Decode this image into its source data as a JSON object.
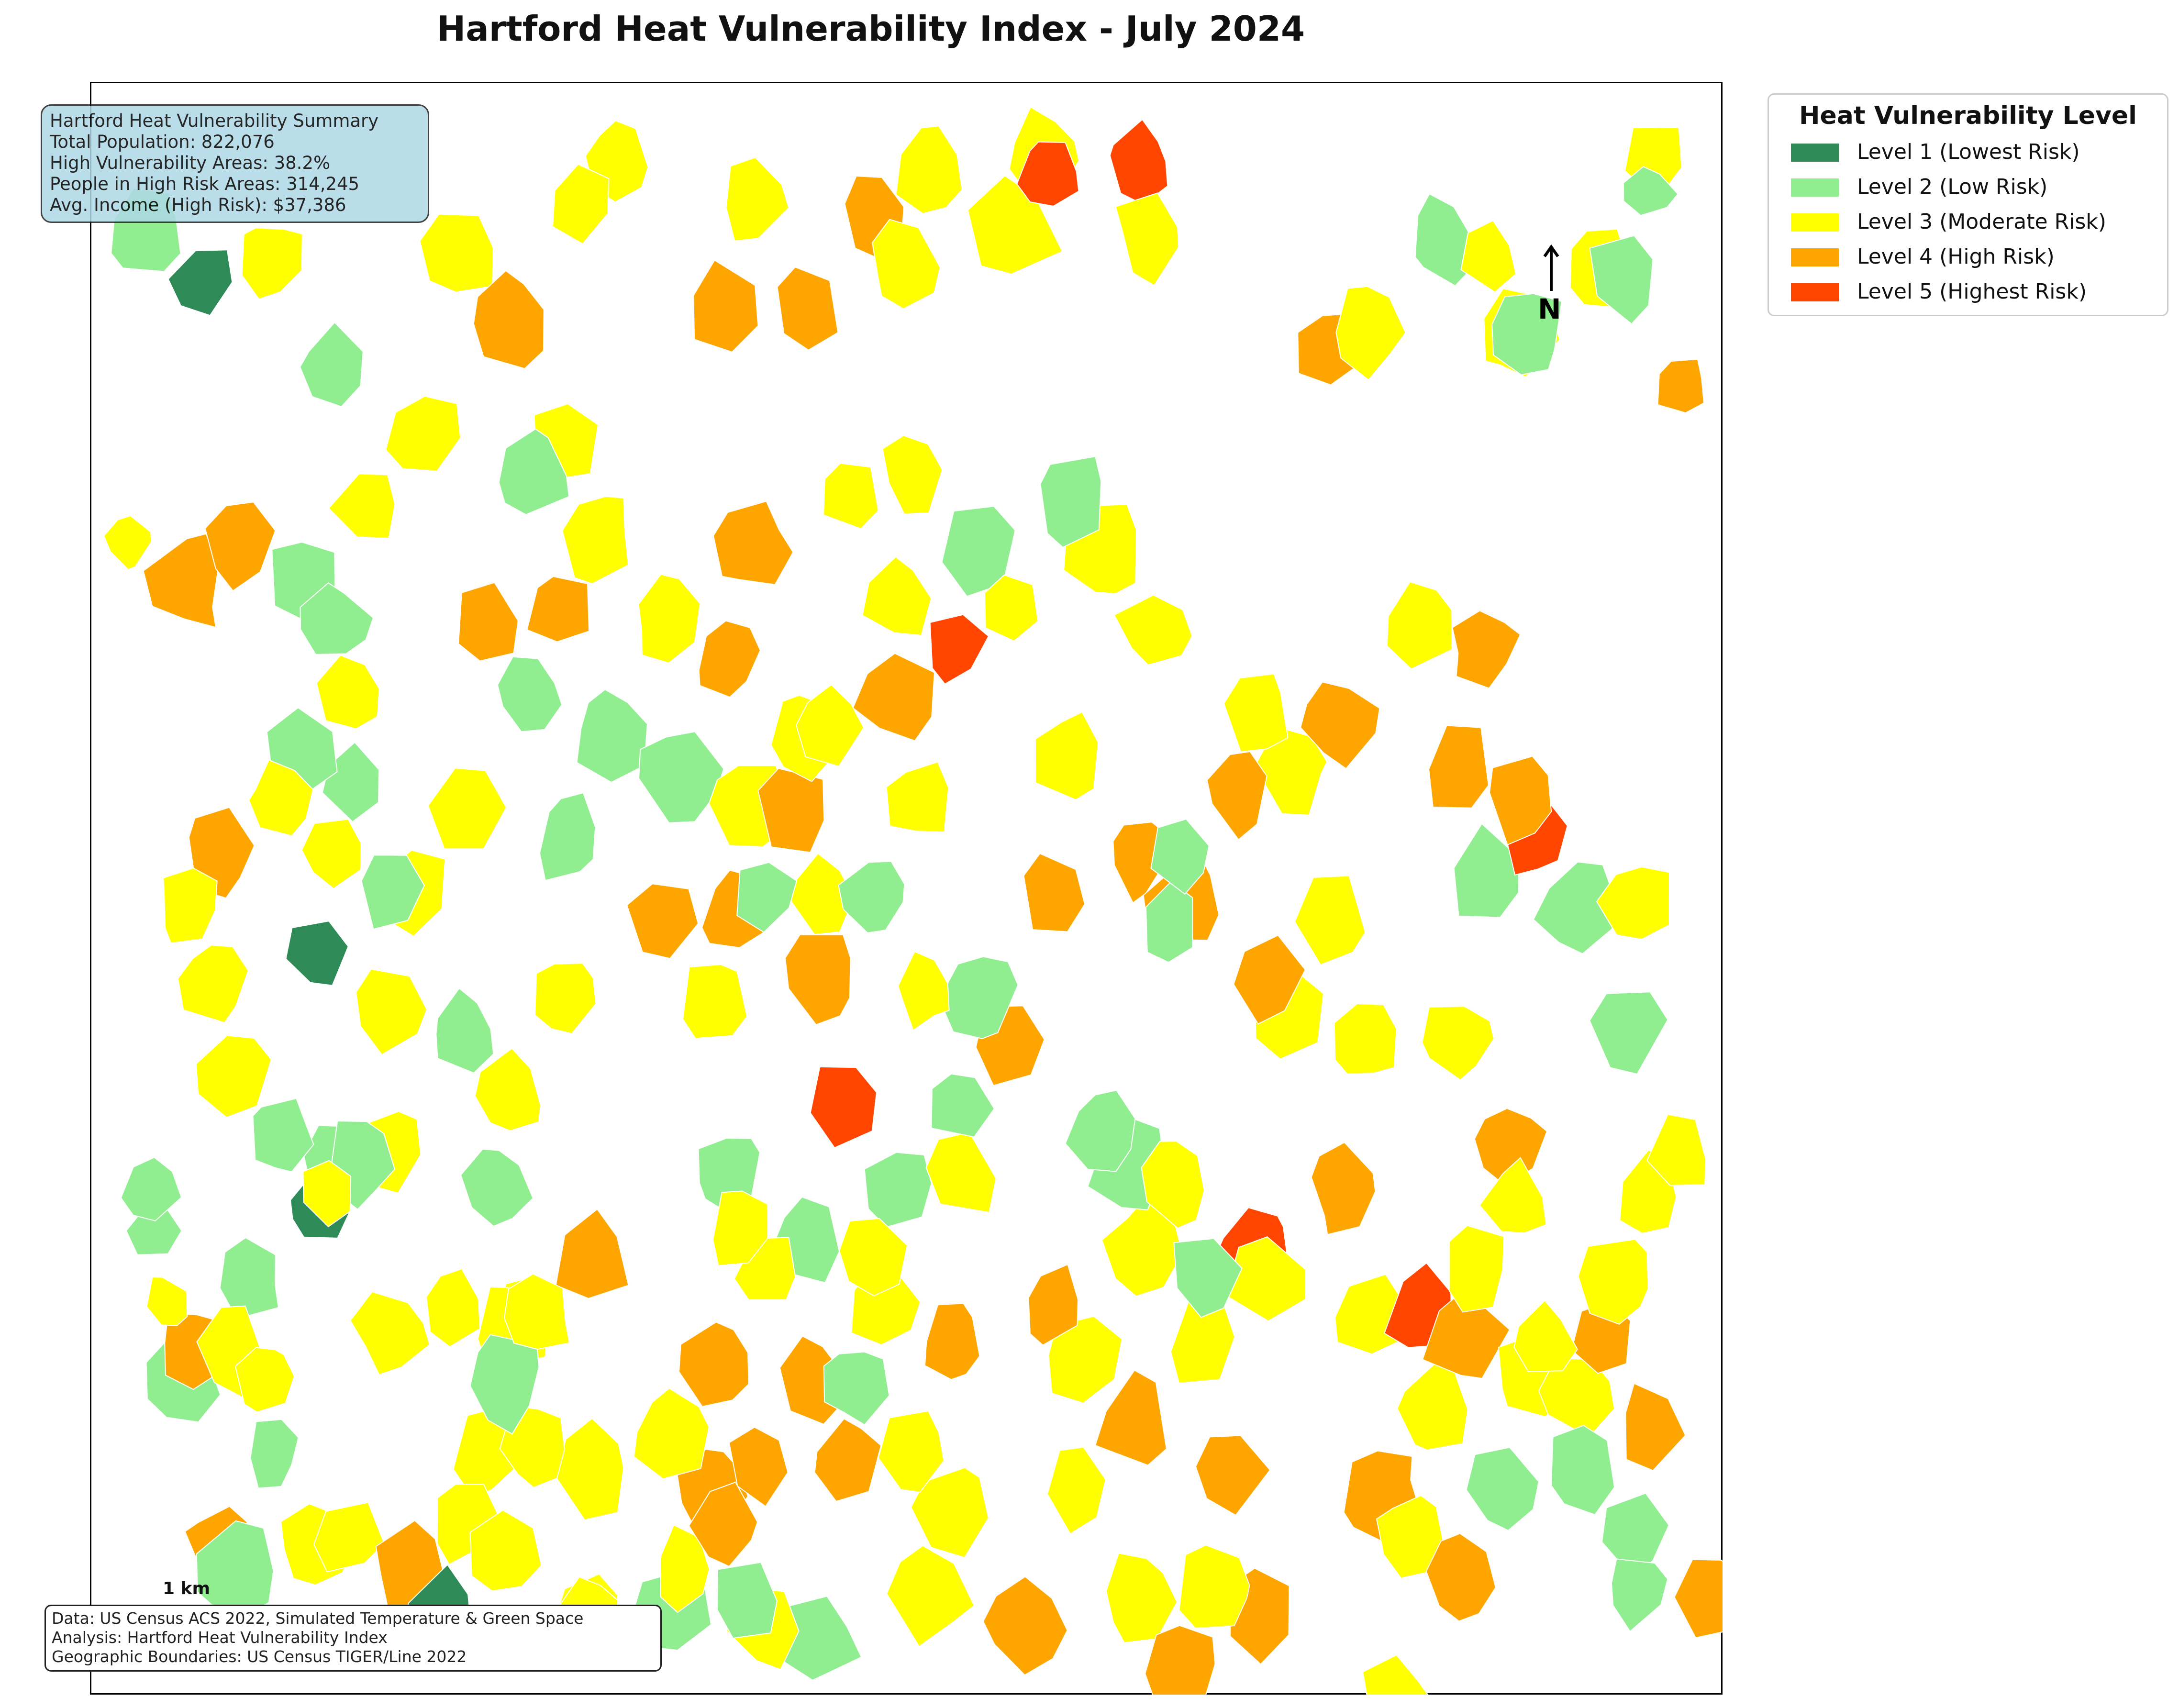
{
  "title": "Hartford Heat Vulnerability Index - July 2024",
  "colors": {
    "level1": "#2e8b57",
    "level2": "#90ee90",
    "level3": "#ffff00",
    "level4": "#ffa500",
    "level5": "#ff4500"
  },
  "summary": {
    "heading": "Hartford Heat Vulnerability Summary",
    "total_population": "Total Population: 822,076",
    "high_vulnerability_areas": "High Vulnerability Areas: 38.2%",
    "people_high_risk": "People in High Risk Areas: 314,245",
    "avg_income_high_risk": "Avg. Income (High Risk): $37,386"
  },
  "legend": {
    "title": "Heat Vulnerability Level",
    "items": [
      {
        "label": "Level 1 (Lowest Risk)",
        "level": 1
      },
      {
        "label": "Level 2 (Low Risk)",
        "level": 2
      },
      {
        "label": "Level 3 (Moderate Risk)",
        "level": 3
      },
      {
        "label": "Level 4 (High Risk)",
        "level": 4
      },
      {
        "label": "Level 5 (Highest Risk)",
        "level": 5
      }
    ]
  },
  "north_label": "N",
  "scale_label": "1 km",
  "source": {
    "data": "Data: US Census ACS 2022, Simulated Temperature & Green Space",
    "analysis": "Analysis: Hartford Heat Vulnerability Index",
    "boundaries": "Geographic Boundaries: US Census TIGER/Line 2022"
  }
}
